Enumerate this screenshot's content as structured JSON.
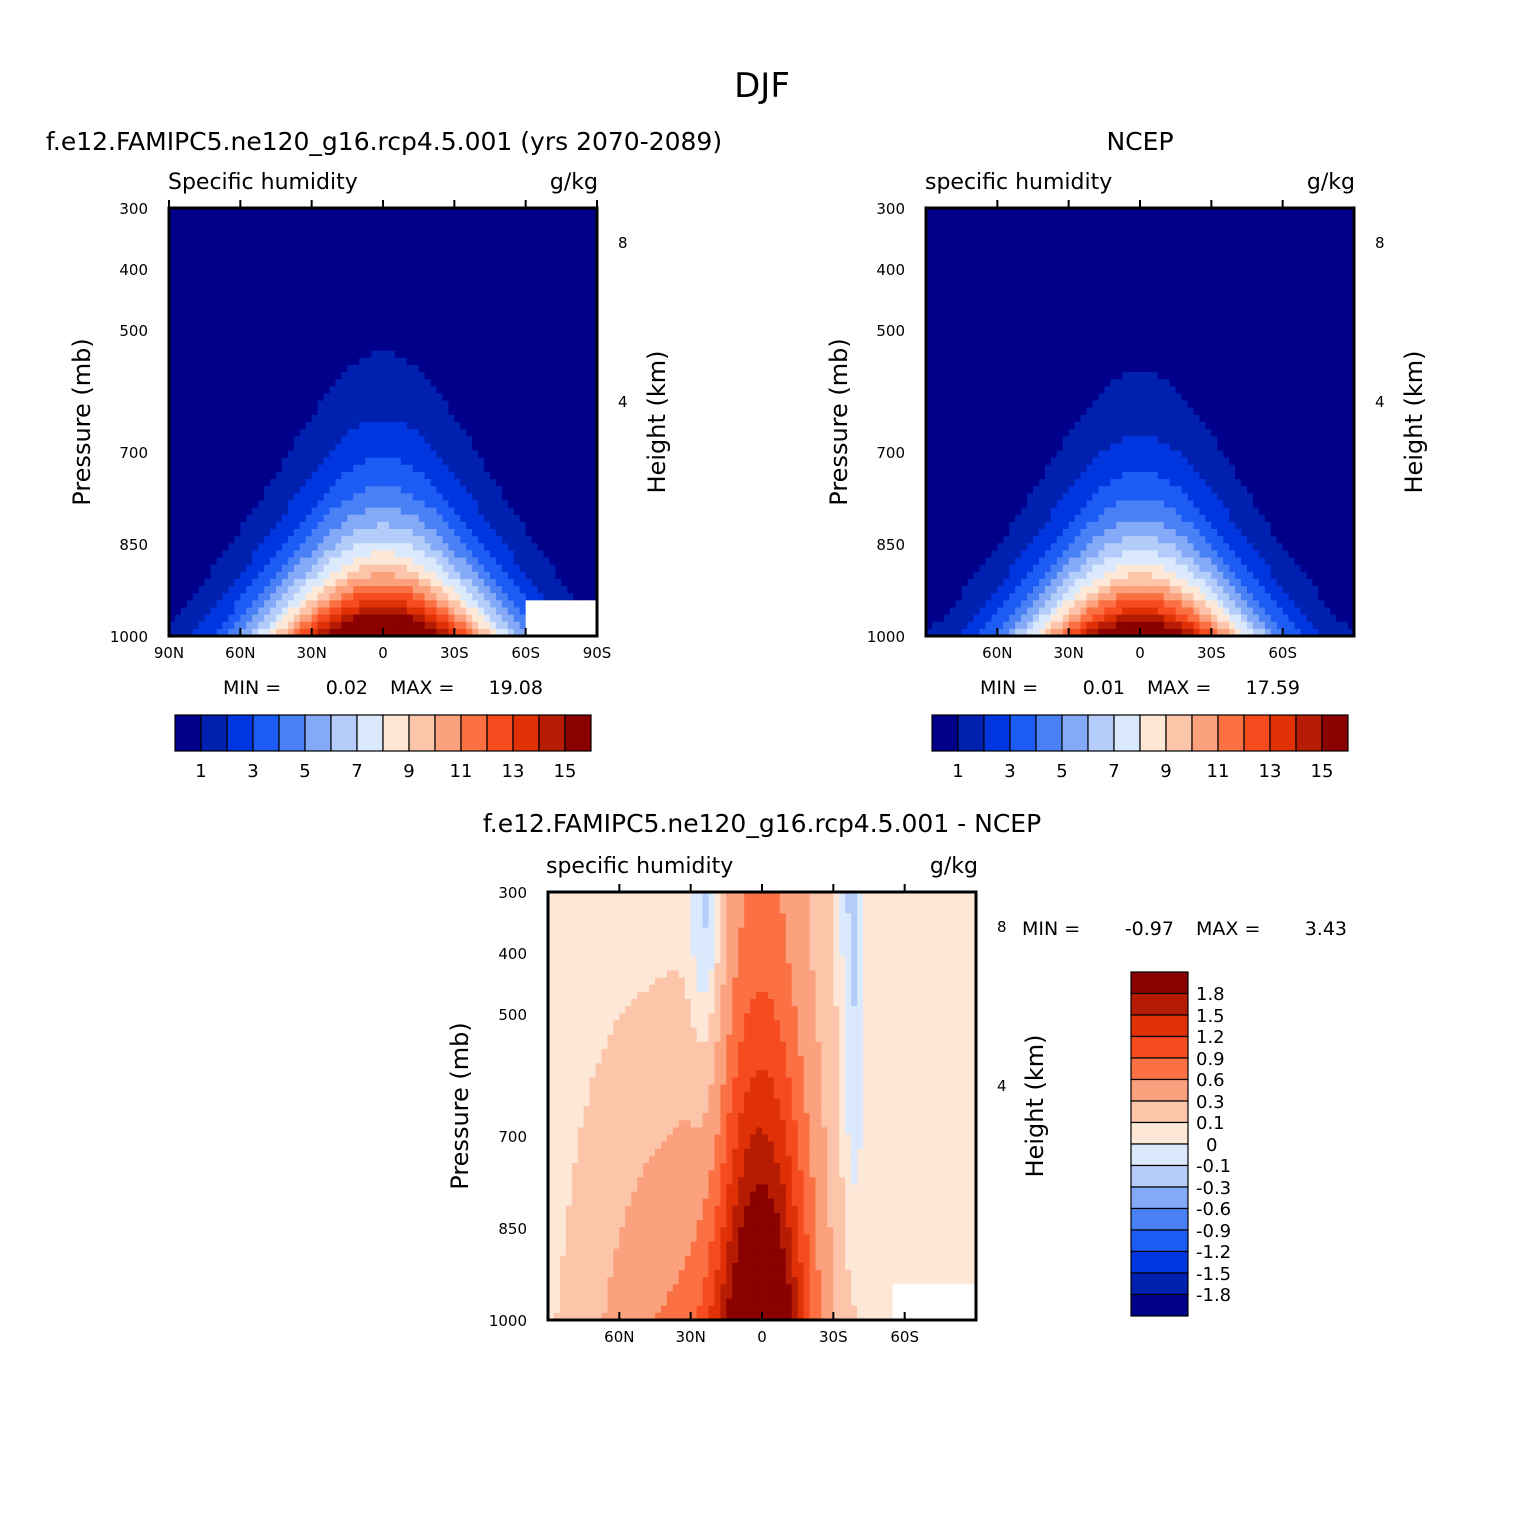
{
  "figure": {
    "title": "DJF"
  },
  "palettes": {
    "absolute": [
      "#00008a",
      "#0020b0",
      "#0036e0",
      "#1c5cf5",
      "#4a80f5",
      "#84aaf7",
      "#b4ccfa",
      "#dbe9fc",
      "#fde8d8",
      "#fcc5aa",
      "#fba17d",
      "#fb7143",
      "#f64a1f",
      "#df3006",
      "#b51c03",
      "#8b0000"
    ],
    "difference": [
      "#00008a",
      "#0020b0",
      "#0036e0",
      "#1c5cf5",
      "#4a80f5",
      "#84aaf7",
      "#b4ccfa",
      "#dbe9fc",
      "#fde8d8",
      "#fcc5aa",
      "#fba17d",
      "#fb7143",
      "#f64a1f",
      "#df3006",
      "#b51c03",
      "#8b0000"
    ]
  },
  "chart_data": [
    {
      "type": "heatmap",
      "title": "f.e12.FAMIPC5.ne120_g16.rcp4.5.001 (yrs 2070-2089)",
      "subtitle_left": "Specific humidity",
      "subtitle_right": "g/kg",
      "xlabel": "",
      "ylabel": "Pressure (mb)",
      "ylabel_right": "Height (km)",
      "x_ticks": [
        "90N",
        "60N",
        "30N",
        "0",
        "30S",
        "60S",
        "90S"
      ],
      "y_ticks": [
        "300",
        "400",
        "500",
        "700",
        "850",
        "1000"
      ],
      "y_right_ticks": [
        "8",
        "4"
      ],
      "min_label": "MIN =",
      "min_value": "0.02",
      "max_label": "MAX =",
      "max_value": "19.08",
      "colorbar_labels": [
        "1",
        "3",
        "5",
        "7",
        "9",
        "11",
        "13",
        "15"
      ],
      "field": {
        "lat_center": 0,
        "width_deg": 52,
        "peak": 19.08,
        "surface_fraction": 0.015,
        "scale_height_frac": 0.27,
        "cut": "both"
      }
    },
    {
      "type": "heatmap",
      "title": "NCEP",
      "subtitle_left": "specific humidity",
      "subtitle_right": "g/kg",
      "xlabel": "",
      "ylabel": "Pressure (mb)",
      "ylabel_right": "Height (km)",
      "x_ticks": [
        "60N",
        "30N",
        "0",
        "30S",
        "60S"
      ],
      "y_ticks": [
        "300",
        "400",
        "500",
        "700",
        "850",
        "1000"
      ],
      "y_right_ticks": [
        "8",
        "4"
      ],
      "min_label": "MIN =",
      "min_value": "0.01",
      "max_label": "MAX =",
      "max_value": "17.59",
      "colorbar_labels": [
        "1",
        "3",
        "5",
        "7",
        "9",
        "11",
        "13",
        "15"
      ],
      "field": {
        "lat_center": 0,
        "width_deg": 50,
        "peak": 17.59,
        "surface_fraction": 0.02,
        "scale_height_frac": 0.26,
        "cut": "none"
      }
    },
    {
      "type": "heatmap",
      "title": "f.e12.FAMIPC5.ne120_g16.rcp4.5.001 - NCEP",
      "subtitle_left": "specific humidity",
      "subtitle_right": "g/kg",
      "xlabel": "",
      "ylabel": "Pressure (mb)",
      "ylabel_right": "Height (km)",
      "x_ticks": [
        "60N",
        "30N",
        "0",
        "30S",
        "60S"
      ],
      "y_ticks": [
        "300",
        "400",
        "500",
        "700",
        "850",
        "1000"
      ],
      "y_right_ticks": [
        "8",
        "4"
      ],
      "min_label": "MIN =",
      "min_value": "-0.97",
      "max_label": "MAX =",
      "max_value": "3.43",
      "colorbar_labels": [
        "1.8",
        "1.5",
        "1.2",
        "0.9",
        "0.6",
        "0.3",
        "0.1",
        "0",
        "-0.1",
        "-0.3",
        "-0.6",
        "-0.9",
        "-1.2",
        "-1.5",
        "-1.8"
      ],
      "levels": [
        -1.8,
        -1.5,
        -1.2,
        -0.9,
        -0.6,
        -0.3,
        -0.1,
        0,
        0.1,
        0.3,
        0.6,
        0.9,
        1.2,
        1.5,
        1.8
      ]
    }
  ]
}
